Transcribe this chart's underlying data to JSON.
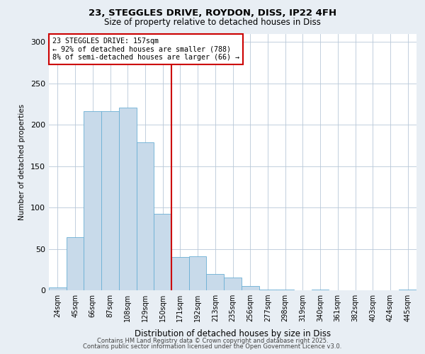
{
  "title_line1": "23, STEGGLES DRIVE, ROYDON, DISS, IP22 4FH",
  "title_line2": "Size of property relative to detached houses in Diss",
  "xlabel": "Distribution of detached houses by size in Diss",
  "ylabel": "Number of detached properties",
  "categories": [
    "24sqm",
    "45sqm",
    "66sqm",
    "87sqm",
    "108sqm",
    "129sqm",
    "150sqm",
    "171sqm",
    "192sqm",
    "213sqm",
    "235sqm",
    "256sqm",
    "277sqm",
    "298sqm",
    "319sqm",
    "340sqm",
    "361sqm",
    "382sqm",
    "403sqm",
    "424sqm",
    "445sqm"
  ],
  "values": [
    3,
    64,
    216,
    216,
    221,
    179,
    92,
    40,
    41,
    20,
    15,
    5,
    1,
    1,
    0,
    1,
    0,
    0,
    0,
    0,
    1
  ],
  "bar_color": "#c8daea",
  "bar_edge_color": "#6aafd4",
  "vline_color": "#cc0000",
  "annotation_text": "23 STEGGLES DRIVE: 157sqm\n← 92% of detached houses are smaller (788)\n8% of semi-detached houses are larger (66) →",
  "annotation_box_color": "#ffffff",
  "annotation_box_edge": "#cc0000",
  "ylim": [
    0,
    310
  ],
  "yticks": [
    0,
    50,
    100,
    150,
    200,
    250,
    300
  ],
  "footer_line1": "Contains HM Land Registry data © Crown copyright and database right 2025.",
  "footer_line2": "Contains public sector information licensed under the Open Government Licence v3.0.",
  "bg_color": "#e8eef4",
  "plot_bg_color": "#ffffff",
  "grid_color": "#b8c8d8"
}
